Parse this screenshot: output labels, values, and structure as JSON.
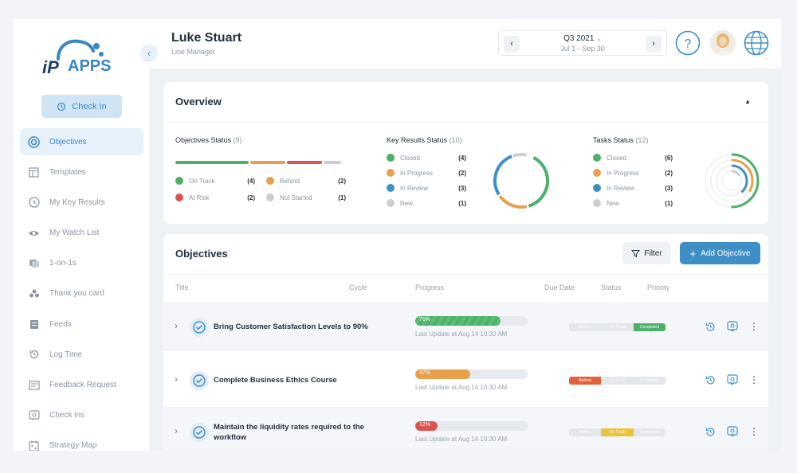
{
  "sidebar": {
    "logo_text": "APPS",
    "checkin_label": "Check In",
    "items": [
      {
        "label": "Objectives",
        "icon": "target-icon",
        "active": true
      },
      {
        "label": "Templates",
        "icon": "template-icon"
      },
      {
        "label": "My Key Results",
        "icon": "clock-icon"
      },
      {
        "label": "My Watch List",
        "icon": "eye-icon"
      },
      {
        "label": "1-on-1s",
        "icon": "chat-icon"
      },
      {
        "label": "Thank you card",
        "icon": "people-icon"
      },
      {
        "label": "Feeds",
        "icon": "feed-icon"
      },
      {
        "label": "Log Time",
        "icon": "history-icon"
      },
      {
        "label": "Feedback Request",
        "icon": "mail-icon"
      },
      {
        "label": "Check ins",
        "icon": "checkin-icon"
      },
      {
        "label": "Strategy Map",
        "icon": "map-icon"
      }
    ]
  },
  "header": {
    "name": "Luke Stuart",
    "role": "Line Manager",
    "quarter": "Q3 2021",
    "range": "Jul 1 - Sep 30"
  },
  "overview": {
    "title": "Overview",
    "objectives_status": {
      "title": "Objectives Status",
      "count": "(9)",
      "items": [
        {
          "label": "On Track",
          "value": "(4)",
          "color": "#4caf6a"
        },
        {
          "label": "Behind",
          "value": "(2)",
          "color": "#e8a04a"
        },
        {
          "label": "At Risk",
          "value": "(2)",
          "color": "#d9534f"
        },
        {
          "label": "Not Started",
          "value": "(1)",
          "color": "#c9ced4"
        }
      ]
    },
    "key_results_status": {
      "title": "Key Results Status",
      "count": "(10)",
      "items": [
        {
          "label": "Closed",
          "value": "(4)",
          "color": "#4caf6a"
        },
        {
          "label": "In Progress",
          "value": "(2)",
          "color": "#e8a04a"
        },
        {
          "label": "In Review",
          "value": "(3)",
          "color": "#3f8fc6"
        },
        {
          "label": "New",
          "value": "(1)",
          "color": "#c9ced4"
        }
      ]
    },
    "tasks_status": {
      "title": "Tasks Status",
      "count": "(12)",
      "items": [
        {
          "label": "Closed",
          "value": "(6)",
          "color": "#4caf6a"
        },
        {
          "label": "In Progress",
          "value": "(2)",
          "color": "#e8a04a"
        },
        {
          "label": "In Review",
          "value": "(3)",
          "color": "#3f8fc6"
        },
        {
          "label": "New",
          "value": "(1)",
          "color": "#c9ced4"
        }
      ]
    }
  },
  "objectives": {
    "title": "Objectives",
    "filter_label": "Filter",
    "add_label": "Add Objective",
    "columns": {
      "title": "Title",
      "cycle": "Cycle",
      "progress": "Progress",
      "due": "Due Date",
      "status": "Status",
      "priority": "Priority"
    },
    "status_labels": [
      "Behind",
      "On Track",
      "Completed"
    ],
    "rows": [
      {
        "title": "Bring Customer Satisfaction Levels to 90%",
        "progress": 76,
        "progress_label": "76%",
        "color": "#4caf6a",
        "last_update": "Last Update at Aug 14 10:30 AM",
        "status_active": 2,
        "status_color": "#4caf6a"
      },
      {
        "title": "Complete Business Ethics Course",
        "progress": 47,
        "progress_label": "47%",
        "color": "#e8a04a",
        "last_update": "Last Update at Aug 14 10:30 AM",
        "status_active": 0,
        "status_color": "#e0623a"
      },
      {
        "title": "Maintain the liquidity rates required to the workflow",
        "progress": 12,
        "progress_label": "12%",
        "color": "#d9534f",
        "last_update": "Last Update at Aug 14 10:30 AM",
        "status_active": 1,
        "status_color": "#e9c33a"
      }
    ]
  }
}
